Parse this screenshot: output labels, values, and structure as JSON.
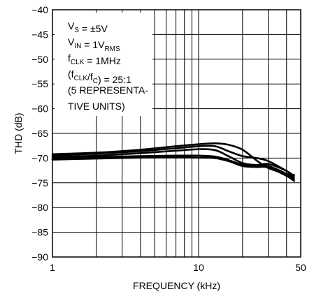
{
  "chart_data": {
    "type": "line",
    "xlabel": "FREQUENCY (kHz)",
    "ylabel": "THD (dB)",
    "x_scale": "log",
    "xlim": [
      1,
      50
    ],
    "ylim": [
      -90,
      -40
    ],
    "x_ticks": [
      1,
      10,
      50
    ],
    "y_ticks": [
      -40,
      -45,
      -50,
      -55,
      -60,
      -65,
      -70,
      -75,
      -80,
      -85,
      -90
    ],
    "grid": true,
    "annotation_lines": [
      {
        "id": "vs",
        "parts": [
          {
            "t": "V"
          },
          {
            "t": "S",
            "sub": true
          },
          {
            "t": " = ±5V"
          }
        ]
      },
      {
        "id": "vin",
        "parts": [
          {
            "t": "V"
          },
          {
            "t": "IN",
            "sub": true
          },
          {
            "t": " = 1V"
          },
          {
            "t": "RMS",
            "sub": true
          }
        ]
      },
      {
        "id": "fclk",
        "parts": [
          {
            "t": "f"
          },
          {
            "t": "CLK",
            "sub": true
          },
          {
            "t": " = 1MHz"
          }
        ]
      },
      {
        "id": "ratio",
        "parts": [
          {
            "t": "(f"
          },
          {
            "t": "CLK",
            "sub": true
          },
          {
            "t": "/f"
          },
          {
            "t": "C",
            "sub": true
          },
          {
            "t": ") = 25:1"
          }
        ]
      },
      {
        "id": "units1",
        "parts": [
          {
            "t": "(5 REPRESENTA-"
          }
        ]
      },
      {
        "id": "units2",
        "parts": [
          {
            "t": "TIVE UNITS)"
          }
        ]
      }
    ],
    "series": [
      {
        "x": [
          1,
          2,
          4,
          7,
          10,
          13,
          16,
          20,
          25,
          30,
          40,
          45
        ],
        "y": [
          -69.2,
          -68.9,
          -68.3,
          -67.6,
          -67.2,
          -67.0,
          -67.3,
          -68.3,
          -70.5,
          -72.0,
          -73.2,
          -73.4
        ]
      },
      {
        "x": [
          1,
          2,
          4,
          7,
          10,
          13,
          16,
          20,
          25,
          30,
          40,
          45
        ],
        "y": [
          -69.5,
          -69.1,
          -68.6,
          -68.0,
          -67.6,
          -67.6,
          -68.6,
          -69.6,
          -70.0,
          -70.6,
          -72.6,
          -73.6
        ]
      },
      {
        "x": [
          1,
          2,
          4,
          7,
          10,
          13,
          16,
          20,
          25,
          30,
          40,
          45
        ],
        "y": [
          -69.8,
          -69.5,
          -69.0,
          -68.5,
          -68.2,
          -68.4,
          -69.6,
          -71.0,
          -71.4,
          -71.2,
          -72.6,
          -74.0
        ]
      },
      {
        "x": [
          1,
          2,
          4,
          7,
          10,
          13,
          16,
          20,
          25,
          30,
          40,
          45
        ],
        "y": [
          -70.1,
          -69.8,
          -69.6,
          -69.5,
          -69.5,
          -69.7,
          -70.4,
          -71.3,
          -71.5,
          -71.6,
          -73.2,
          -74.4
        ]
      },
      {
        "x": [
          1,
          2,
          4,
          7,
          10,
          13,
          16,
          20,
          25,
          30,
          40,
          45
        ],
        "y": [
          -70.3,
          -70.1,
          -69.9,
          -69.8,
          -69.9,
          -70.0,
          -70.6,
          -71.6,
          -71.8,
          -71.9,
          -73.6,
          -74.6
        ]
      }
    ]
  }
}
